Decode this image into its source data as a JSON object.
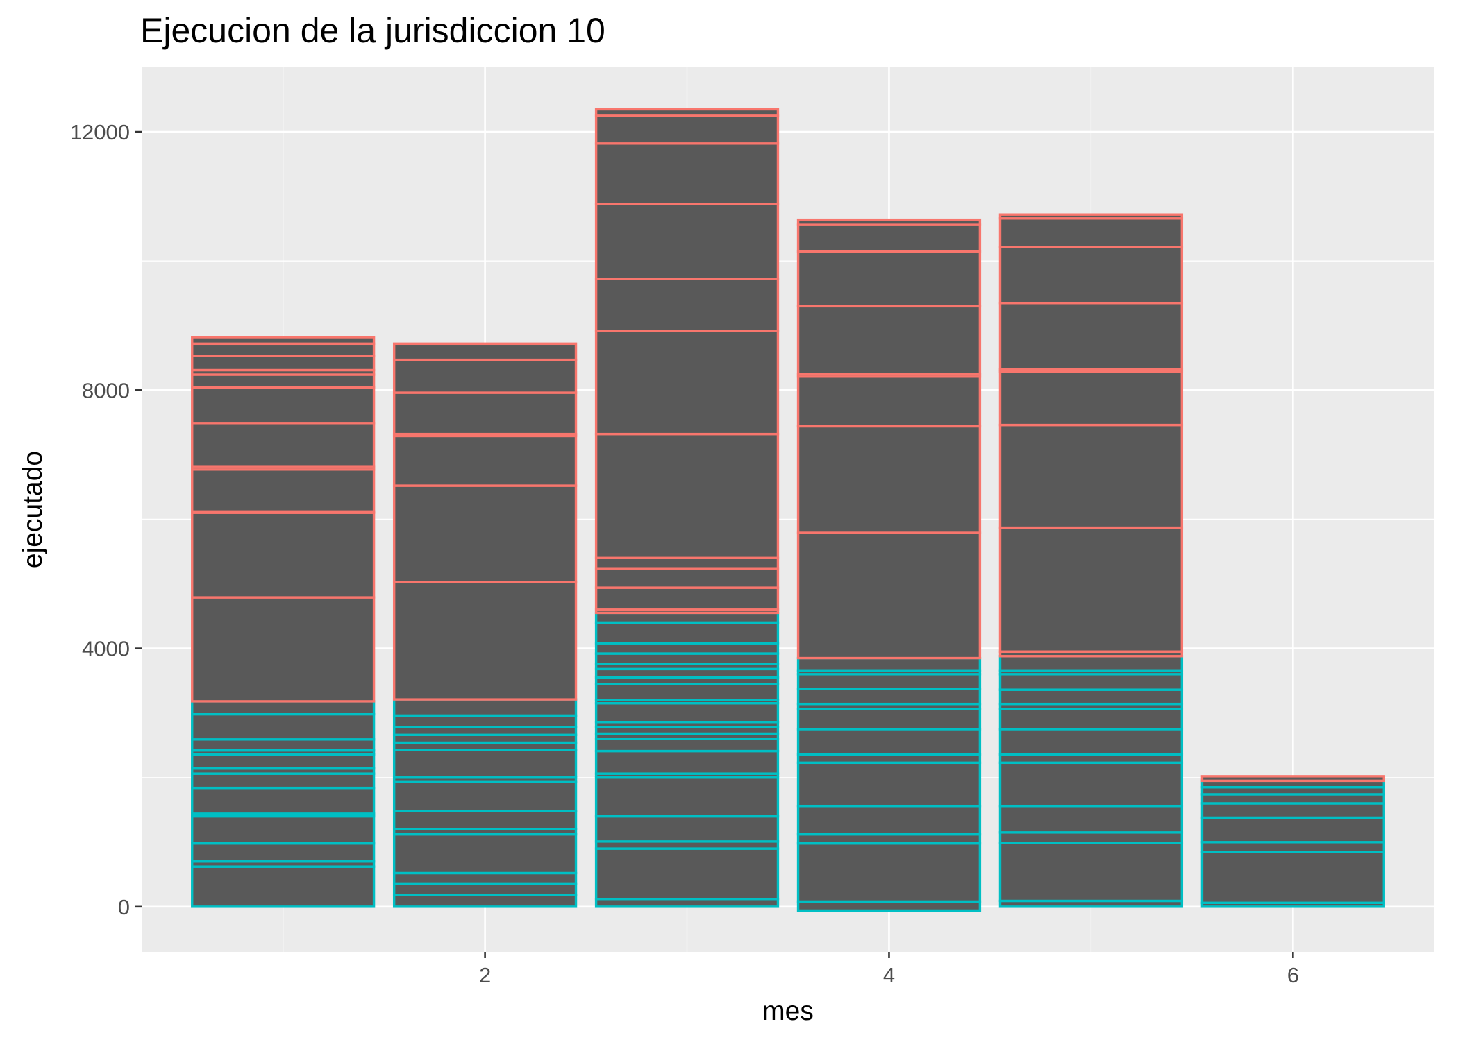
{
  "chart_data": {
    "type": "bar",
    "title": "Ejecucion de la jurisdiccion 10",
    "xlabel": "mes",
    "ylabel": "ejecutado",
    "xlim": [
      0.3,
      6.7
    ],
    "ylim": [
      -700,
      13000
    ],
    "x_ticks": [
      2,
      4,
      6
    ],
    "x_tick_labels": [
      "2",
      "4",
      "6"
    ],
    "y_ticks": [
      0,
      4000,
      8000,
      12000
    ],
    "y_tick_labels": [
      "0",
      "4000",
      "8000",
      "12000"
    ],
    "grid": true,
    "legend": "none",
    "colors": {
      "panel": "#ebebeb",
      "grid": "#ffffff",
      "fill": "#595959",
      "outline_upper": "#f8766d",
      "outline_lower": "#00bfc4",
      "tick": "#333333"
    },
    "series": [
      {
        "outline": "#00bfc4",
        "bars": [
          {
            "x": 1,
            "breaks": [
              0,
              620,
              700,
              980,
              1400,
              1440,
              1840,
              2060,
              2140,
              2360,
              2420,
              2590,
              2980,
              3180
            ]
          },
          {
            "x": 2,
            "breaks": [
              0,
              180,
              360,
              520,
              1120,
              1200,
              1480,
              1940,
              2000,
              2430,
              2540,
              2660,
              2780,
              2960,
              3210
            ]
          },
          {
            "x": 3,
            "breaks": [
              0,
              120,
              900,
              1010,
              1400,
              2000,
              2060,
              2410,
              2600,
              2680,
              2780,
              2860,
              3150,
              3200,
              3450,
              3550,
              3680,
              3760,
              3920,
              4080,
              4400,
              4550
            ]
          },
          {
            "x": 4,
            "breaks": [
              -60,
              80,
              980,
              1120,
              1560,
              2230,
              2360,
              2750,
              3060,
              3140,
              3370,
              3600,
              3660,
              3850
            ]
          },
          {
            "x": 5,
            "breaks": [
              0,
              90,
              990,
              1150,
              1560,
              2230,
              2360,
              2750,
              3060,
              3140,
              3360,
              3600,
              3660,
              3880
            ]
          },
          {
            "x": 6,
            "breaks": [
              0,
              60,
              850,
              1000,
              1380,
              1600,
              1740,
              1850,
              1950
            ]
          }
        ]
      },
      {
        "outline": "#f8766d",
        "bars": [
          {
            "x": 1,
            "breaks": [
              3180,
              4790,
              6100,
              6120,
              6770,
              6820,
              7490,
              8040,
              8240,
              8310,
              8530,
              8720,
              8820
            ]
          },
          {
            "x": 2,
            "breaks": [
              3210,
              5030,
              6520,
              7290,
              7320,
              7960,
              8470,
              8720
            ]
          },
          {
            "x": 3,
            "breaks": [
              4550,
              4600,
              4940,
              5240,
              5400,
              7320,
              8920,
              9720,
              10880,
              11820,
              12250,
              12350
            ]
          },
          {
            "x": 4,
            "breaks": [
              3850,
              5790,
              7440,
              8210,
              8250,
              9300,
              10150,
              10560,
              10640
            ]
          },
          {
            "x": 5,
            "breaks": [
              3880,
              3950,
              5870,
              7460,
              8290,
              8320,
              9350,
              10220,
              10660,
              10720
            ]
          },
          {
            "x": 6,
            "breaks": [
              1950,
              2020
            ]
          }
        ]
      }
    ]
  }
}
